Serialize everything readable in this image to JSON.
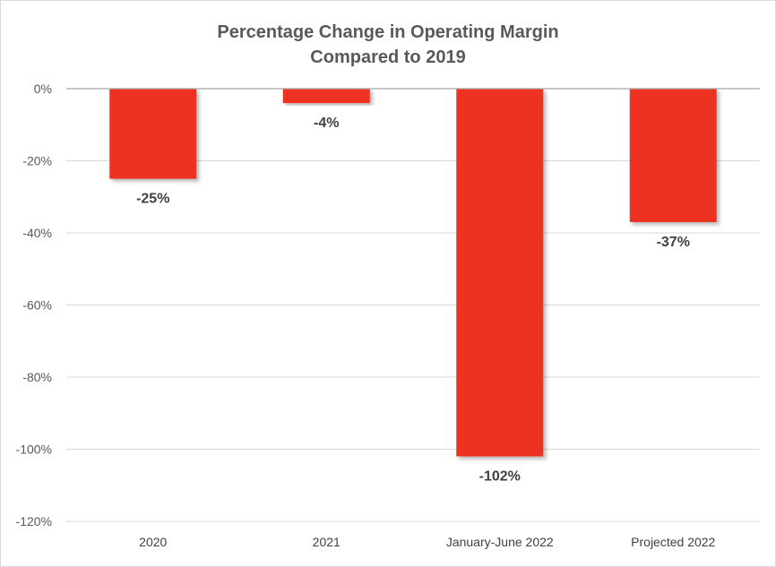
{
  "chart_data": {
    "type": "bar",
    "title_lines": [
      "Percentage Change in Operating Margin",
      "Compared to 2019"
    ],
    "categories": [
      "2020",
      "2021",
      "January-June 2022",
      "Projected 2022"
    ],
    "values": [
      -25,
      -4,
      -102,
      -37
    ],
    "data_labels": [
      "-25%",
      "-4%",
      "-102%",
      "-37%"
    ],
    "y_ticks": [
      0,
      -20,
      -40,
      -60,
      -80,
      -100,
      -120
    ],
    "y_tick_labels": [
      "0%",
      "-20%",
      "-40%",
      "-60%",
      "-80%",
      "-100%",
      "-120%"
    ],
    "ylim": [
      -120,
      0
    ],
    "grid": true,
    "legend": "none",
    "bar_color": "#EE3124",
    "grid_color": "#d9d9d9"
  }
}
